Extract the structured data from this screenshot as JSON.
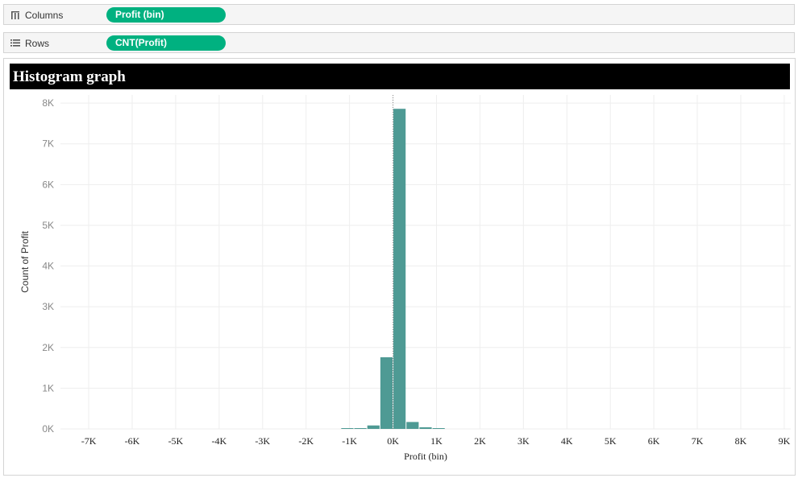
{
  "shelves": {
    "columns": {
      "label": "Columns",
      "pill": "Profit (bin)"
    },
    "rows": {
      "label": "Rows",
      "pill": "CNT(Profit)"
    }
  },
  "colors": {
    "pill": "#00b180",
    "bar": "#4e9a94",
    "title_bg": "#000000",
    "title_text": "#ffffff",
    "grid": "#eeeeee"
  },
  "icons": {
    "columns": "columns-icon",
    "rows": "rows-icon"
  },
  "chart_data": {
    "type": "bar",
    "title": "Histogram graph",
    "xlabel": "Profit (bin)",
    "ylabel": "Count of Profit",
    "xlim": [
      -7650,
      9150
    ],
    "ylim": [
      0,
      8200
    ],
    "bin_width": 300,
    "x_ticks": [
      "-7K",
      "-6K",
      "-5K",
      "-4K",
      "-3K",
      "-2K",
      "-1K",
      "0K",
      "1K",
      "2K",
      "3K",
      "4K",
      "5K",
      "6K",
      "7K",
      "8K",
      "9K"
    ],
    "x_tick_values": [
      -7000,
      -6000,
      -5000,
      -4000,
      -3000,
      -2000,
      -1000,
      0,
      1000,
      2000,
      3000,
      4000,
      5000,
      6000,
      7000,
      8000,
      9000
    ],
    "y_ticks": [
      "0K",
      "1K",
      "2K",
      "3K",
      "4K",
      "5K",
      "6K",
      "7K",
      "8K"
    ],
    "y_tick_values": [
      0,
      1000,
      2000,
      3000,
      4000,
      5000,
      6000,
      7000,
      8000
    ],
    "bins": [
      {
        "x": -1200,
        "count": 6
      },
      {
        "x": -900,
        "count": 18
      },
      {
        "x": -600,
        "count": 85
      },
      {
        "x": -300,
        "count": 1760
      },
      {
        "x": 0,
        "count": 7860
      },
      {
        "x": 300,
        "count": 170
      },
      {
        "x": 600,
        "count": 40
      },
      {
        "x": 900,
        "count": 10
      }
    ],
    "reference_line_x": 0,
    "grid": true
  }
}
